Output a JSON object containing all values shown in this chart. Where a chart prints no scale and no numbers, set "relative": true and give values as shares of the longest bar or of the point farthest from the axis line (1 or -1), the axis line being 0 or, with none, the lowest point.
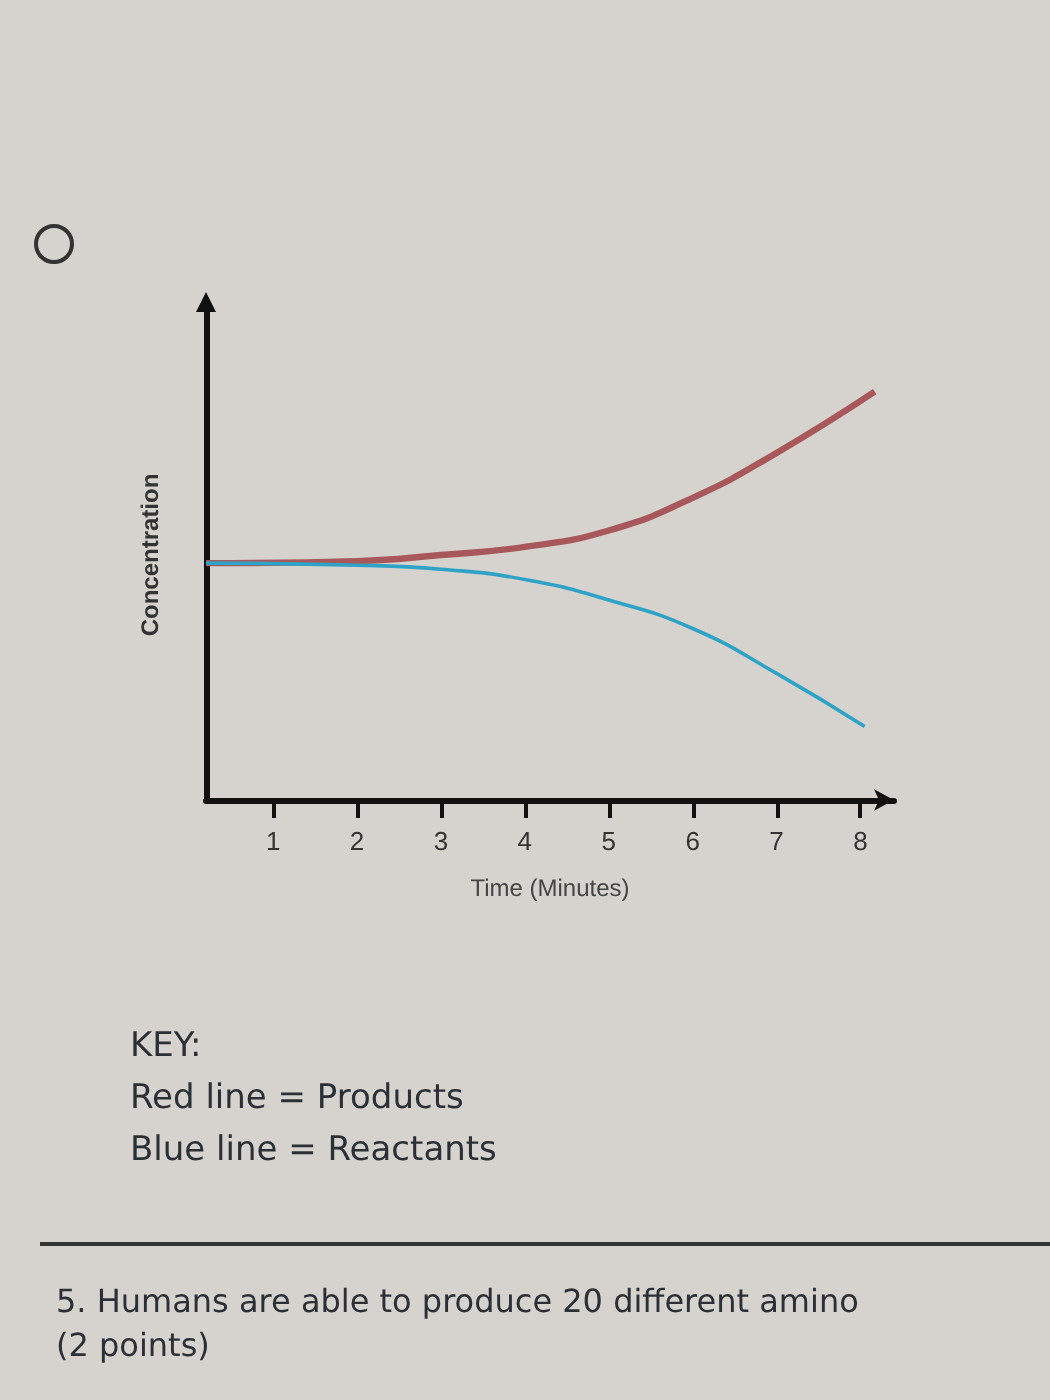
{
  "chart_data": {
    "type": "line",
    "xlabel": "Time (Minutes)",
    "ylabel": "Concentration",
    "relative": true,
    "xlim": [
      0.2,
      8.4
    ],
    "xticks": [
      1,
      2,
      3,
      4,
      5,
      6,
      7,
      8
    ],
    "series": [
      {
        "color": "#a8585a",
        "x": [
          0.2,
          2,
          3,
          4,
          5,
          6,
          7,
          8.17
        ],
        "values": [
          0.58,
          0.585,
          0.6,
          0.62,
          0.66,
          0.74,
          0.85,
          1
        ]
      },
      {
        "color": "#2fa3c6",
        "x": [
          0.2,
          2,
          3,
          4,
          5,
          6,
          7,
          8.05
        ],
        "values": [
          0.58,
          0.575,
          0.565,
          0.54,
          0.49,
          0.42,
          0.31,
          0.18
        ]
      }
    ],
    "annotations": [
      "KEY:",
      "Red line = Products",
      "Blue line = Reactants",
      "5. Humans are able to produce 20 different amino",
      "(2 points)"
    ]
  }
}
